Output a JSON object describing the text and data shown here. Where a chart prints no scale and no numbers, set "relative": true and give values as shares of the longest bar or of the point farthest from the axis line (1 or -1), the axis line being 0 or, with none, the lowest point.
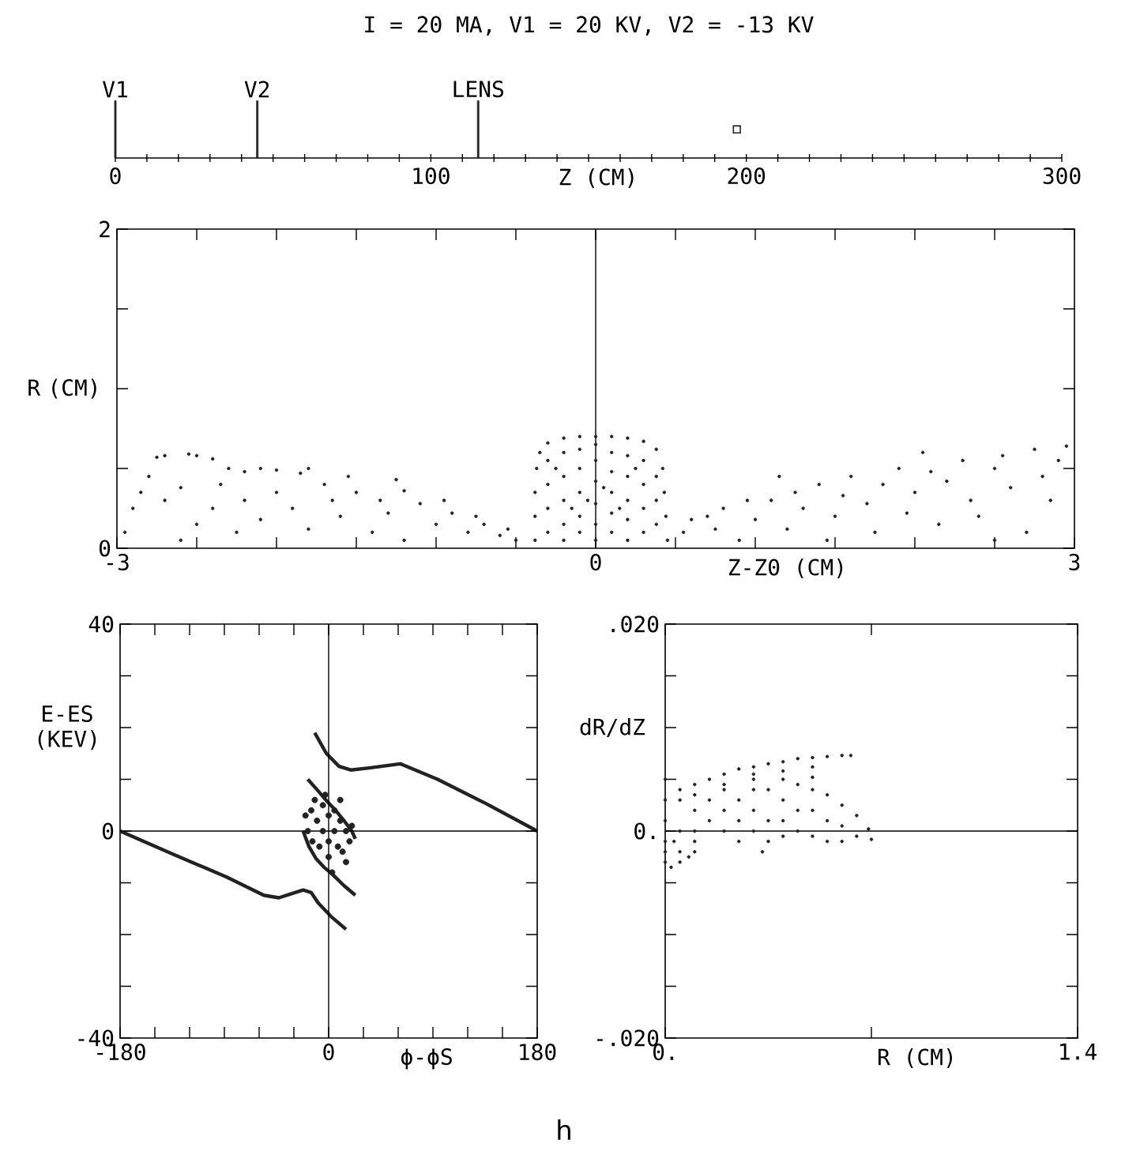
{
  "chart_data": [
    {
      "type": "bar",
      "title": "I = 20 MA, V1 = 20 KV, V2 = -13 KV",
      "xlabel": "Z (CM)",
      "xlim": [
        0,
        300
      ],
      "xticks": [
        0,
        {
          "value": 10,
          "label": null
        },
        {
          "value": 20,
          "label": null
        },
        {
          "value": 30,
          "label": null
        },
        {
          "value": 40,
          "label": null
        },
        {
          "value": 50,
          "label": null
        },
        {
          "value": 60,
          "label": null
        },
        {
          "value": 70,
          "label": null
        },
        {
          "value": 80,
          "label": null
        },
        {
          "value": 90,
          "label": null
        },
        100,
        {
          "value": 110,
          "label": null
        },
        {
          "value": 120,
          "label": null
        },
        {
          "value": 130,
          "label": null
        },
        {
          "value": 140,
          "label": null
        },
        {
          "value": 150,
          "label": null
        },
        {
          "value": 160,
          "label": null
        },
        {
          "value": 170,
          "label": null
        },
        {
          "value": 180,
          "label": null
        },
        {
          "value": 190,
          "label": null
        },
        200,
        {
          "value": 210,
          "label": null
        },
        {
          "value": 220,
          "label": null
        },
        {
          "value": 230,
          "label": null
        },
        {
          "value": 240,
          "label": null
        },
        {
          "value": 250,
          "label": null
        },
        {
          "value": 260,
          "label": null
        },
        {
          "value": 270,
          "label": null
        },
        {
          "value": 280,
          "label": null
        },
        {
          "value": 290,
          "label": null
        },
        300
      ],
      "relative": true,
      "series": [
        {
          "color": "#222222",
          "x": [
            0,
            45,
            115
          ],
          "values": [
            1,
            1,
            1
          ]
        },
        {
          "type": "scatter",
          "marker": "square",
          "color": "#222222",
          "x": [
            197
          ],
          "values": [
            0.5
          ]
        }
      ],
      "annotations": [
        {
          "text": "V1",
          "x": 0,
          "y": 1
        },
        {
          "text": "V2",
          "x": 45,
          "y": 1
        },
        {
          "text": "LENS",
          "x": 115,
          "y": 1
        }
      ]
    },
    {
      "type": "scatter",
      "xlabel": "Z-Z0 (CM)",
      "ylabel": "R (CM)",
      "xlim": [
        -3,
        3
      ],
      "ylim": [
        0,
        2
      ],
      "xticks": [
        -3,
        {
          "value": -2.5,
          "label": null
        },
        {
          "value": -2,
          "label": null
        },
        {
          "value": -1.5,
          "label": null
        },
        {
          "value": -1,
          "label": null
        },
        {
          "value": -0.5,
          "label": null
        },
        0,
        {
          "value": 0.5,
          "label": null
        },
        {
          "value": 1,
          "label": null
        },
        {
          "value": 1.5,
          "label": null
        },
        {
          "value": 2,
          "label": null
        },
        {
          "value": 2.5,
          "label": null
        },
        3
      ],
      "yticks": [
        0,
        {
          "value": 0.5,
          "label": null
        },
        {
          "value": 1,
          "label": null
        },
        {
          "value": 1.5,
          "label": null
        },
        2
      ],
      "color": "#222222",
      "x": [
        -2.75,
        -2.7,
        -2.55,
        -2.5,
        -2.4,
        -2.3,
        -2.2,
        -2.1,
        -2.0,
        -1.85,
        -1.8,
        -2.9,
        -2.85,
        -2.8,
        -2.7,
        -2.6,
        -2.5,
        -2.4,
        -2.35,
        -2.2,
        -2.1,
        -2.0,
        -1.9,
        -1.8,
        -1.7,
        -1.65,
        -1.6,
        -1.5,
        -1.4,
        -1.35,
        -1.3,
        -1.2,
        -1.1,
        -1.0,
        -0.95,
        -0.9,
        -0.8,
        -0.75,
        -0.7,
        -0.6,
        -0.55,
        -0.5,
        -2.95,
        -2.6,
        -1.2,
        -1.55,
        -1.25,
        -2.25,
        0.55,
        0.6,
        0.7,
        0.75,
        0.8,
        0.9,
        0.95,
        1.0,
        1.1,
        1.2,
        1.25,
        1.3,
        1.4,
        1.5,
        1.55,
        1.6,
        1.7,
        1.75,
        1.8,
        1.9,
        1.95,
        2.0,
        2.1,
        2.15,
        2.2,
        2.3,
        2.35,
        2.4,
        2.5,
        2.55,
        2.6,
        2.7,
        2.75,
        2.8,
        2.85,
        2.9,
        2.95,
        2.5,
        1.45,
        2.05,
        1.15,
        -0.38,
        -0.38,
        -0.38,
        -0.37,
        -0.35,
        -0.3,
        -0.2,
        -0.1,
        0,
        0.1,
        0.2,
        0.3,
        0.38,
        0.42,
        0.43,
        0.44,
        0.45,
        -0.3,
        -0.3,
        -0.3,
        -0.3,
        -0.2,
        -0.2,
        -0.2,
        -0.2,
        -0.2,
        -0.1,
        -0.1,
        -0.1,
        -0.1,
        -0.1,
        0,
        0,
        0,
        0,
        0,
        0,
        0.1,
        0.1,
        0.1,
        0.1,
        0.1,
        0.2,
        0.2,
        0.2,
        0.2,
        0.2,
        0.3,
        0.3,
        0.3,
        0.3,
        0.38,
        0.38,
        0.38,
        -0.25,
        0.25,
        -0.15,
        0.15,
        0.05,
        -0.05
      ],
      "values": [
        0.57,
        0.58,
        0.59,
        0.58,
        0.56,
        0.5,
        0.48,
        0.5,
        0.49,
        0.47,
        0.5,
        0.25,
        0.35,
        0.45,
        0.3,
        0.38,
        0.15,
        0.25,
        0.4,
        0.3,
        0.18,
        0.35,
        0.25,
        0.12,
        0.4,
        0.3,
        0.2,
        0.35,
        0.1,
        0.3,
        0.22,
        0.36,
        0.28,
        0.15,
        0.3,
        0.22,
        0.1,
        0.2,
        0.15,
        0.08,
        0.12,
        0.05,
        0.1,
        0.05,
        0.05,
        0.45,
        0.43,
        0.1,
        0.1,
        0.18,
        0.2,
        0.12,
        0.25,
        0.05,
        0.3,
        0.18,
        0.3,
        0.12,
        0.35,
        0.25,
        0.4,
        0.2,
        0.33,
        0.45,
        0.28,
        0.1,
        0.4,
        0.5,
        0.22,
        0.35,
        0.48,
        0.15,
        0.42,
        0.55,
        0.3,
        0.2,
        0.5,
        0.58,
        0.38,
        0.1,
        0.62,
        0.45,
        0.3,
        0.55,
        0.64,
        0.05,
        0.05,
        0.6,
        0.45,
        0.05,
        0.2,
        0.35,
        0.5,
        0.6,
        0.66,
        0.69,
        0.7,
        0.7,
        0.7,
        0.69,
        0.67,
        0.62,
        0.5,
        0.35,
        0.2,
        0.05,
        0.1,
        0.25,
        0.4,
        0.55,
        0.05,
        0.15,
        0.3,
        0.45,
        0.6,
        0.1,
        0.2,
        0.35,
        0.5,
        0.62,
        0.05,
        0.15,
        0.28,
        0.42,
        0.55,
        0.65,
        0.1,
        0.22,
        0.35,
        0.48,
        0.6,
        0.05,
        0.18,
        0.3,
        0.45,
        0.58,
        0.1,
        0.25,
        0.4,
        0.55,
        0.15,
        0.3,
        0.45,
        0.5,
        0.5,
        0.25,
        0.25,
        0.38,
        0.3
      ],
      "ref_lines": [
        {
          "axis": "x",
          "value": 0
        }
      ]
    },
    {
      "type": "line",
      "xlabel": "ϕ-ϕS",
      "ylabel": "E-ES (KEV)",
      "xlim": [
        -180,
        180
      ],
      "ylim": [
        -40,
        40
      ],
      "xticks": [
        -180,
        {
          "value": -150,
          "label": null
        },
        {
          "value": -120,
          "label": null
        },
        {
          "value": -90,
          "label": null
        },
        {
          "value": -60,
          "label": null
        },
        {
          "value": -30,
          "label": null
        },
        0,
        {
          "value": 30,
          "label": null
        },
        {
          "value": 60,
          "label": null
        },
        {
          "value": 90,
          "label": null
        },
        {
          "value": 120,
          "label": null
        },
        {
          "value": 150,
          "label": null
        },
        180
      ],
      "yticks": [
        -40,
        {
          "value": -30,
          "label": null
        },
        {
          "value": -20,
          "label": null
        },
        {
          "value": -10,
          "label": null
        },
        0,
        {
          "value": 10,
          "label": null
        },
        {
          "value": 20,
          "label": null
        },
        {
          "value": 30,
          "label": null
        },
        40
      ],
      "series": [
        {
          "color": "#222222",
          "x": [
            -180,
            -134,
            -88,
            -56,
            -43,
            -29,
            -22,
            -15,
            -9,
            2,
            15
          ],
          "values": [
            0,
            -4.5,
            -8.9,
            -12.4,
            -12.9,
            -11.9,
            -11.4,
            -11.9,
            -13.9,
            -16.5,
            -19
          ]
        },
        {
          "color": "#222222",
          "x": [
            -12,
            -2,
            9,
            19,
            35,
            62,
            94,
            135,
            180
          ],
          "values": [
            19,
            15,
            12.5,
            11.8,
            12.2,
            13,
            10,
            5.4,
            0
          ]
        },
        {
          "color": "#222222",
          "x": [
            -18,
            -10,
            -2,
            6,
            14,
            20,
            23
          ],
          "values": [
            10,
            8,
            5.9,
            4,
            1.8,
            0,
            -1.5
          ]
        },
        {
          "color": "#222222",
          "x": [
            -22,
            -17,
            -11,
            -4,
            3,
            13,
            23
          ],
          "values": [
            0,
            -3,
            -5.3,
            -7,
            -8.3,
            -10.5,
            -12.4
          ]
        },
        {
          "type": "scatter",
          "marker": "circle",
          "color": "#222222",
          "x": [
            -20,
            -18,
            -15,
            -14,
            -10,
            -8,
            -5,
            -5,
            0,
            0,
            0,
            5,
            5,
            8,
            10,
            12,
            15,
            18,
            20,
            10,
            -12,
            3,
            15,
            -3
          ],
          "values": [
            3,
            0,
            4,
            -2,
            2,
            -3,
            5,
            0,
            3,
            -2,
            -5,
            4,
            0,
            -3,
            2,
            -4,
            0,
            -2,
            1,
            6,
            6,
            -8,
            -6,
            7
          ]
        }
      ],
      "ref_lines": [
        {
          "axis": "x",
          "value": 0
        },
        {
          "axis": "y",
          "value": 0
        }
      ]
    },
    {
      "type": "scatter",
      "xlabel": "R (CM)",
      "ylabel": "dR/dZ",
      "xlim": [
        0,
        1.4
      ],
      "ylim": [
        -0.02,
        0.02
      ],
      "xticks": [
        {
          "value": 0,
          "label": "0."
        },
        {
          "value": 0.7,
          "label": null
        },
        1.4
      ],
      "yticks": [
        {
          "value": -0.02,
          "label": "-.020"
        },
        {
          "value": -0.015,
          "label": null
        },
        {
          "value": -0.01,
          "label": null
        },
        {
          "value": -0.005,
          "label": null
        },
        {
          "value": 0,
          "label": "0."
        },
        {
          "value": 0.005,
          "label": null
        },
        {
          "value": 0.01,
          "label": null
        },
        {
          "value": 0.015,
          "label": null
        },
        {
          "value": 0.02,
          "label": ".020"
        }
      ],
      "color": "#222222",
      "x": [
        0.05,
        0.1,
        0.15,
        0.2,
        0.25,
        0.3,
        0.35,
        0.4,
        0.45,
        0.5,
        0.55,
        0.6,
        0.63,
        0.1,
        0.2,
        0.3,
        0.4,
        0.5,
        0,
        0,
        0,
        0,
        0.05,
        0.05,
        0.05,
        0.1,
        0.1,
        0.1,
        0.15,
        0.15,
        0.2,
        0.2,
        0.2,
        0.25,
        0.25,
        0.25,
        0.3,
        0.3,
        0.3,
        0.33,
        0.35,
        0.35,
        0.35,
        0.4,
        0.4,
        0.4,
        0.4,
        0.45,
        0.45,
        0.45,
        0.5,
        0.5,
        0.5,
        0.55,
        0.55,
        0.55,
        0.6,
        0.6,
        0.6,
        0.65,
        0.65,
        0.69,
        0.7,
        0.5,
        0.3,
        0,
        0,
        0.02,
        0.05,
        0.08,
        0.1,
        0.03
      ],
      "values": [
        0.004,
        0.0045,
        0.005,
        0.0055,
        0.006,
        0.0062,
        0.0065,
        0.0067,
        0.007,
        0.0071,
        0.0072,
        0.0073,
        0.0073,
        0.0035,
        0.0045,
        0.005,
        0.0058,
        0.0062,
        0.005,
        0.003,
        0.001,
        -0.001,
        0.003,
        0,
        -0.002,
        0.002,
        0,
        -0.001,
        0.003,
        0.001,
        0.004,
        0.002,
        0,
        0.003,
        0.001,
        -0.001,
        0.004,
        0.002,
        0,
        -0.002,
        0.004,
        0.001,
        -0.001,
        0.005,
        0.003,
        0.001,
        -0.0005,
        0.0045,
        0.002,
        0,
        0.004,
        0.002,
        -0.0005,
        0.0035,
        0.001,
        -0.001,
        0.0025,
        0.0005,
        -0.001,
        0.0015,
        -0.0005,
        0.0002,
        -0.0008,
        0.0052,
        0.0055,
        -0.002,
        -0.003,
        -0.0035,
        -0.003,
        -0.0025,
        -0.002,
        -0.001
      ],
      "ref_lines": [
        {
          "axis": "y",
          "value": 0
        }
      ],
      "annotations": [
        "h"
      ]
    }
  ]
}
